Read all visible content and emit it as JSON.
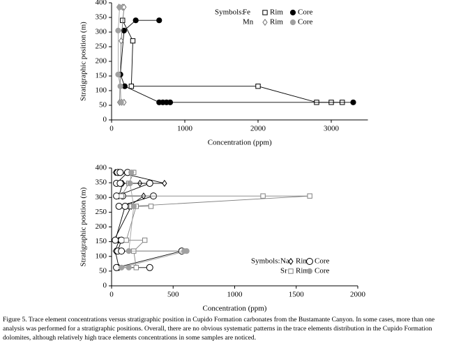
{
  "chart_data": [
    {
      "type": "line",
      "xlabel": "Concentration (ppm)",
      "ylabel": "Stratigraphic position (m)",
      "xlim": [
        0,
        3500
      ],
      "xticks": [
        0,
        1000,
        2000,
        3000
      ],
      "ylim": [
        0,
        400
      ],
      "yticks": [
        0,
        50,
        100,
        150,
        200,
        250,
        300,
        350,
        400
      ],
      "legend_title": "Symbols:",
      "groups": [
        {
          "label": "Fe",
          "series": [
            {
              "name": "Rim",
              "marker": "square",
              "color": "#000000",
              "fill": "#ffffff",
              "x": [
                150,
                290,
                270,
                2000,
                2800,
                3000,
                3150
              ],
              "y": [
                340,
                270,
                115,
                115,
                60,
                60,
                60
              ]
            },
            {
              "name": "Core",
              "marker": "circle",
              "color": "#000000",
              "fill": "#000000",
              "x": [
                650,
                330,
                170,
                120,
                180,
                650,
                700,
                750,
                800,
                3300
              ],
              "y": [
                340,
                340,
                305,
                155,
                115,
                60,
                60,
                60,
                60,
                60
              ]
            }
          ]
        },
        {
          "label": "Mn",
          "series": [
            {
              "name": "Rim",
              "marker": "diamond",
              "color": "#707070",
              "fill": "#ffffff",
              "x": [
                100,
                150,
                170,
                130,
                110,
                140,
                170
              ],
              "y": [
                385,
                385,
                385,
                270,
                60,
                60,
                60
              ]
            },
            {
              "name": "Core",
              "marker": "circle",
              "color": "#a0a0a0",
              "fill": "#a0a0a0",
              "x": [
                110,
                90,
                90,
                120,
                130
              ],
              "y": [
                385,
                305,
                155,
                115,
                60
              ]
            }
          ]
        }
      ]
    },
    {
      "type": "line",
      "xlabel": "Concentration (ppm)",
      "ylabel": "Stratigraphic position (m)",
      "xlim": [
        0,
        2000
      ],
      "xticks": [
        0,
        500,
        1000,
        1500,
        2000
      ],
      "ylim": [
        0,
        400
      ],
      "yticks": [
        0,
        50,
        100,
        150,
        200,
        250,
        300,
        350,
        400
      ],
      "legend_title": "Symbols:",
      "groups": [
        {
          "label": "Na",
          "series": [
            {
              "name": "Rim",
              "marker": "diamond",
              "color": "#000000",
              "fill": "#ffffff",
              "x": [
                30,
                60,
                430,
                230,
                90,
                60,
                260,
                140,
                160,
                20,
                60,
                30,
                60
              ],
              "y": [
                385,
                385,
                348,
                348,
                348,
                305,
                305,
                270,
                270,
                155,
                155,
                118,
                62
              ]
            },
            {
              "name": "Core",
              "marker": "ring",
              "color": "#000000",
              "fill": "#ffffff",
              "x": [
                50,
                70,
                130,
                40,
                70,
                310,
                40,
                90,
                340,
                60,
                110,
                30,
                80,
                50,
                80,
                570,
                40,
                310
              ],
              "y": [
                385,
                385,
                385,
                348,
                348,
                348,
                305,
                305,
                305,
                270,
                270,
                155,
                155,
                118,
                118,
                118,
                62,
                62
              ]
            }
          ]
        },
        {
          "label": "Sr",
          "series": [
            {
              "name": "Rim",
              "marker": "square",
              "color": "#808080",
              "fill": "#ffffff",
              "x": [
                170,
                180,
                140,
                80,
                1230,
                1610,
                160,
                320,
                200,
                120,
                270,
                180,
                200
              ],
              "y": [
                385,
                385,
                348,
                305,
                305,
                305,
                270,
                270,
                270,
                155,
                155,
                118,
                62
              ]
            },
            {
              "name": "Core",
              "marker": "circle",
              "color": "#a0a0a0",
              "fill": "#a0a0a0",
              "x": [
                160,
                150,
                180,
                140,
                590,
                610,
                80,
                140
              ],
              "y": [
                385,
                348,
                270,
                118,
                118,
                118,
                62,
                62
              ]
            }
          ]
        }
      ]
    }
  ],
  "caption": "Figure 5. Trace element concentrations versus stratigraphic position in Cupido Formation carbonates from the Bustamante Canyon. In some cases, more than one analysis was performed for a stratigraphic positions. Overall, there are no obvious systematic patterns in the trace elements distribution in the Cupido Formation dolomites, although relatively high trace elements concentrations in some samples are noticed."
}
